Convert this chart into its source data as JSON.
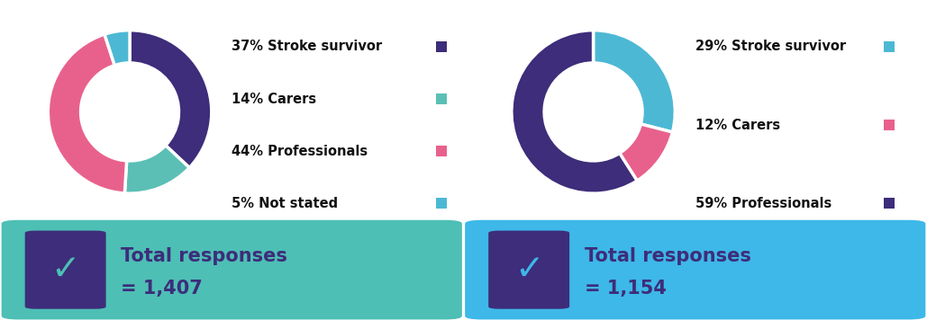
{
  "left": {
    "values": [
      37,
      14,
      44,
      5
    ],
    "colors": [
      "#3d2d7a",
      "#5bbfb5",
      "#e8618c",
      "#4db8d4"
    ],
    "labels": [
      "Stroke survivor",
      "Carers",
      "Professionals",
      "Not stated"
    ],
    "pcts": [
      "37%",
      "14%",
      "44%",
      "5%"
    ],
    "total_line1": "Total responses",
    "total_line2": "= 1,407",
    "box_color": "#4dbfb5",
    "checkmark_box_color": "#3d2d7a",
    "checkmark_color": "#4dbfb5"
  },
  "right": {
    "values": [
      29,
      12,
      59
    ],
    "colors": [
      "#4db8d4",
      "#e8618c",
      "#3d2d7a"
    ],
    "labels": [
      "Stroke survivor",
      "Carers",
      "Professionals"
    ],
    "pcts": [
      "29%",
      "12%",
      "59%"
    ],
    "total_line1": "Total responses",
    "total_line2": "= 1,154",
    "box_color": "#3db8e8",
    "checkmark_box_color": "#3d2d7a",
    "checkmark_color": "#3db8e8"
  },
  "bg_color": "#ffffff",
  "label_fontsize": 10.5,
  "total_fontsize": 15
}
